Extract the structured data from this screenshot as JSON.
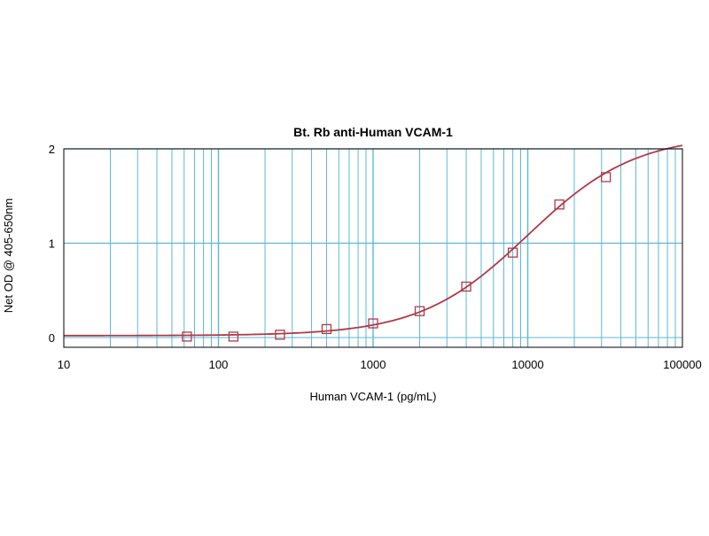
{
  "chart_data": {
    "type": "scatter",
    "title": "Bt. Rb anti-Human VCAM-1",
    "xlabel": "Human VCAM-1 (pg/mL)",
    "ylabel": "Net OD @ 405-650nm",
    "x_scale": "log",
    "xlim": [
      10,
      100000
    ],
    "ylim": [
      0,
      2
    ],
    "x_ticks": [
      "10",
      "100",
      "1000",
      "10000",
      "100000"
    ],
    "y_ticks": [
      "0",
      "1",
      "2"
    ],
    "grid": true,
    "series": [
      {
        "marker": "open-square",
        "points": [
          {
            "x": 62.5,
            "y": 0.01
          },
          {
            "x": 125,
            "y": 0.01
          },
          {
            "x": 250,
            "y": 0.03
          },
          {
            "x": 500,
            "y": 0.09
          },
          {
            "x": 1000,
            "y": 0.15
          },
          {
            "x": 2000,
            "y": 0.28
          },
          {
            "x": 4000,
            "y": 0.54
          },
          {
            "x": 8000,
            "y": 0.9
          },
          {
            "x": 16000,
            "y": 1.41
          },
          {
            "x": 32000,
            "y": 1.7
          }
        ]
      }
    ],
    "fit_curve": {
      "model": "4PL",
      "bottom": 0.02,
      "top": 2.15,
      "ec50": 10000,
      "hill": 1.25
    },
    "colors": {
      "grid": "#5bb8d6",
      "curve": "#b03a48",
      "marker": "#b03a48",
      "frame": "#000000"
    }
  }
}
